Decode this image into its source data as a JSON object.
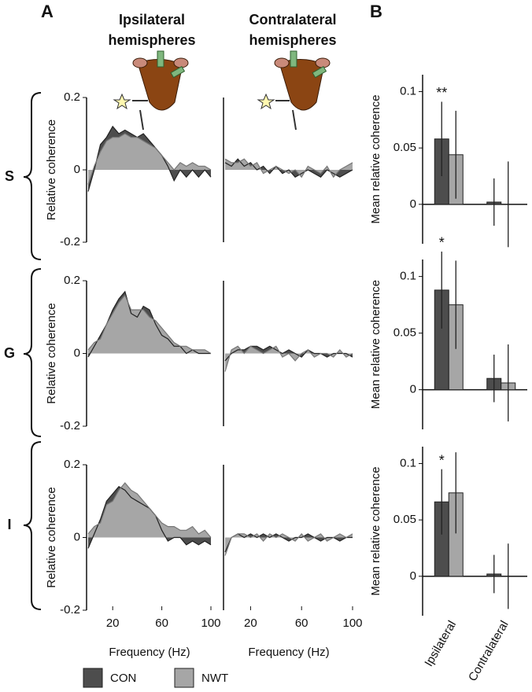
{
  "panel_labels": [
    "A",
    "B"
  ],
  "column_titles": [
    [
      "Ipsilateral",
      "hemispheres"
    ],
    [
      "Contralateral",
      "hemispheres"
    ]
  ],
  "row_labels": [
    "S",
    "G",
    "I"
  ],
  "chart_data": [
    {
      "type": "area",
      "ylabel": "Relative coherence",
      "xlim": [
        0,
        100
      ],
      "ylim": [
        -0.2,
        0.2
      ],
      "yticks": [
        -0.2,
        0,
        0.2
      ],
      "x": [
        0,
        5,
        10,
        15,
        20,
        25,
        30,
        35,
        40,
        45,
        50,
        55,
        60,
        65,
        70,
        75,
        80,
        85,
        90,
        95,
        100
      ],
      "series": [
        {
          "name": "CON",
          "color": "#4d4d4d",
          "values": [
            -0.06,
            0.0,
            0.07,
            0.09,
            0.12,
            0.1,
            0.11,
            0.1,
            0.09,
            0.1,
            0.08,
            0.06,
            0.04,
            0.01,
            -0.03,
            0.0,
            -0.02,
            0.0,
            -0.02,
            0.0,
            -0.02
          ]
        },
        {
          "name": "NWT",
          "color": "#a6a6a6",
          "values": [
            -0.04,
            0.01,
            0.05,
            0.08,
            0.09,
            0.09,
            0.1,
            0.09,
            0.09,
            0.08,
            0.07,
            0.06,
            0.04,
            0.02,
            0.0,
            0.02,
            0.01,
            0.02,
            0.01,
            0.01,
            0.0
          ]
        }
      ]
    },
    {
      "type": "area",
      "xlim": [
        0,
        100
      ],
      "ylim": [
        -0.2,
        0.2
      ],
      "x": [
        0,
        5,
        10,
        15,
        20,
        25,
        30,
        35,
        40,
        45,
        50,
        55,
        60,
        65,
        70,
        75,
        80,
        85,
        90,
        95,
        100
      ],
      "series": [
        {
          "name": "CON",
          "color": "#4d4d4d",
          "values": [
            0.02,
            0.01,
            0.03,
            0.01,
            0.02,
            0.0,
            0.01,
            -0.01,
            0.01,
            -0.01,
            0.0,
            -0.02,
            -0.01,
            0.0,
            -0.01,
            -0.02,
            0.0,
            -0.01,
            -0.02,
            -0.01,
            0.0
          ]
        },
        {
          "name": "NWT",
          "color": "#a6a6a6",
          "values": [
            0.03,
            0.02,
            0.02,
            0.03,
            0.01,
            0.02,
            -0.01,
            0.0,
            0.01,
            0.0,
            -0.01,
            0.0,
            -0.02,
            0.01,
            0.0,
            -0.01,
            0.01,
            -0.02,
            0.0,
            0.01,
            0.02
          ]
        }
      ]
    },
    {
      "type": "bar",
      "ylabel": "Mean relative coherence",
      "ylim": [
        -0.035,
        0.115
      ],
      "yticks": [
        0,
        0.05,
        0.1
      ],
      "categories": [
        "Ipsilateral",
        "Contralateral"
      ],
      "annotations": [
        "**",
        null
      ],
      "series": [
        {
          "name": "CON",
          "color": "#4d4d4d",
          "values": [
            0.058,
            0.002
          ],
          "errors": [
            0.033,
            0.021
          ]
        },
        {
          "name": "NWT",
          "color": "#a6a6a6",
          "values": [
            0.044,
            0
          ],
          "errors": [
            0.039,
            0.038
          ]
        }
      ]
    },
    {
      "type": "area",
      "ylabel": "Relative coherence",
      "xlim": [
        0,
        100
      ],
      "ylim": [
        -0.2,
        0.2
      ],
      "yticks": [
        -0.2,
        0,
        0.2
      ],
      "x": [
        0,
        5,
        10,
        15,
        20,
        25,
        30,
        35,
        40,
        45,
        50,
        55,
        60,
        65,
        70,
        75,
        80,
        85,
        90,
        95,
        100
      ],
      "series": [
        {
          "name": "CON",
          "color": "#4d4d4d",
          "values": [
            -0.01,
            0.02,
            0.05,
            0.08,
            0.12,
            0.15,
            0.17,
            0.11,
            0.1,
            0.13,
            0.12,
            0.08,
            0.05,
            0.04,
            0.02,
            0.02,
            0.0,
            0.01,
            0.0,
            0.0,
            0.0
          ]
        },
        {
          "name": "NWT",
          "color": "#a6a6a6",
          "values": [
            0.01,
            0.03,
            0.04,
            0.08,
            0.11,
            0.14,
            0.16,
            0.12,
            0.12,
            0.12,
            0.1,
            0.09,
            0.07,
            0.05,
            0.03,
            0.02,
            0.02,
            0.01,
            0.01,
            0.01,
            0.0
          ]
        }
      ]
    },
    {
      "type": "area",
      "xlim": [
        0,
        100
      ],
      "ylim": [
        -0.2,
        0.2
      ],
      "x": [
        0,
        5,
        10,
        15,
        20,
        25,
        30,
        35,
        40,
        45,
        50,
        55,
        60,
        65,
        70,
        75,
        80,
        85,
        90,
        95,
        100
      ],
      "series": [
        {
          "name": "CON",
          "color": "#4d4d4d",
          "values": [
            -0.02,
            0.0,
            0.01,
            0.01,
            0.02,
            0.02,
            0.01,
            0.02,
            0.01,
            0.0,
            0.01,
            0.0,
            -0.01,
            0.01,
            0.0,
            0.0,
            -0.01,
            0.0,
            0.0,
            0.0,
            -0.01
          ]
        },
        {
          "name": "NWT",
          "color": "#a6a6a6",
          "values": [
            -0.05,
            0.01,
            0.02,
            0.0,
            0.02,
            0.01,
            0.0,
            0.01,
            0.02,
            -0.01,
            0.0,
            -0.02,
            0.0,
            0.01,
            -0.01,
            0.0,
            0.0,
            -0.01,
            0.01,
            -0.01,
            0.0
          ]
        }
      ]
    },
    {
      "type": "bar",
      "ylabel": "Mean relative coherence",
      "ylim": [
        -0.035,
        0.115
      ],
      "yticks": [
        0,
        0.05,
        0.1
      ],
      "categories": [
        "Ipsilateral",
        "Contralateral"
      ],
      "annotations": [
        "*",
        null
      ],
      "series": [
        {
          "name": "CON",
          "color": "#4d4d4d",
          "values": [
            0.088,
            0.01
          ],
          "errors": [
            0.034,
            0.021
          ]
        },
        {
          "name": "NWT",
          "color": "#a6a6a6",
          "values": [
            0.075,
            0.006
          ],
          "errors": [
            0.039,
            0.034
          ]
        }
      ]
    },
    {
      "type": "area",
      "ylabel": "Relative coherence",
      "xlabel": "Frequency (Hz)",
      "xlim": [
        0,
        100
      ],
      "ylim": [
        -0.2,
        0.2
      ],
      "yticks": [
        -0.2,
        0,
        0.2
      ],
      "xticks": [
        20,
        60,
        100
      ],
      "x": [
        0,
        5,
        10,
        15,
        20,
        25,
        30,
        35,
        40,
        45,
        50,
        55,
        60,
        65,
        70,
        75,
        80,
        85,
        90,
        95,
        100
      ],
      "series": [
        {
          "name": "CON",
          "color": "#4d4d4d",
          "values": [
            -0.03,
            0.01,
            0.05,
            0.1,
            0.12,
            0.14,
            0.13,
            0.11,
            0.1,
            0.09,
            0.08,
            0.06,
            0.02,
            -0.01,
            0.0,
            0.0,
            -0.02,
            -0.01,
            -0.02,
            -0.01,
            -0.02
          ]
        },
        {
          "name": "NWT",
          "color": "#a6a6a6",
          "values": [
            0.01,
            0.03,
            0.04,
            0.09,
            0.1,
            0.13,
            0.15,
            0.13,
            0.12,
            0.1,
            0.08,
            0.06,
            0.04,
            0.03,
            0.03,
            0.02,
            0.02,
            0.03,
            0.01,
            0.02,
            0.0
          ]
        }
      ]
    },
    {
      "type": "area",
      "xlabel": "Frequency (Hz)",
      "xlim": [
        0,
        100
      ],
      "ylim": [
        -0.2,
        0.2
      ],
      "xticks": [
        20,
        60,
        100
      ],
      "x": [
        0,
        5,
        10,
        15,
        20,
        25,
        30,
        35,
        40,
        45,
        50,
        55,
        60,
        65,
        70,
        75,
        80,
        85,
        90,
        95,
        100
      ],
      "series": [
        {
          "name": "CON",
          "color": "#4d4d4d",
          "values": [
            -0.04,
            0.0,
            0.01,
            0.0,
            0.01,
            0.0,
            0.01,
            0.0,
            0.01,
            0.0,
            -0.01,
            0.0,
            0.0,
            0.01,
            0.0,
            -0.01,
            0.0,
            0.0,
            -0.01,
            0.0,
            0.0
          ]
        },
        {
          "name": "NWT",
          "color": "#a6a6a6",
          "values": [
            -0.05,
            0.0,
            0.01,
            0.01,
            0.0,
            0.01,
            -0.01,
            0.01,
            0.0,
            0.01,
            0.0,
            -0.01,
            0.01,
            -0.01,
            0.0,
            0.01,
            -0.01,
            0.0,
            0.01,
            0.0,
            0.01
          ]
        }
      ]
    },
    {
      "type": "bar",
      "ylabel": "Mean relative coherence",
      "ylim": [
        -0.035,
        0.115
      ],
      "yticks": [
        0,
        0.05,
        0.1
      ],
      "categories": [
        "Ipsilateral",
        "Contralateral"
      ],
      "show_categories": true,
      "annotations": [
        "*",
        null
      ],
      "series": [
        {
          "name": "CON",
          "color": "#4d4d4d",
          "values": [
            0.066,
            0.002
          ],
          "errors": [
            0.029,
            0.017
          ]
        },
        {
          "name": "NWT",
          "color": "#a6a6a6",
          "values": [
            0.074,
            0
          ],
          "errors": [
            0.036,
            0.029
          ]
        }
      ]
    }
  ]
}
